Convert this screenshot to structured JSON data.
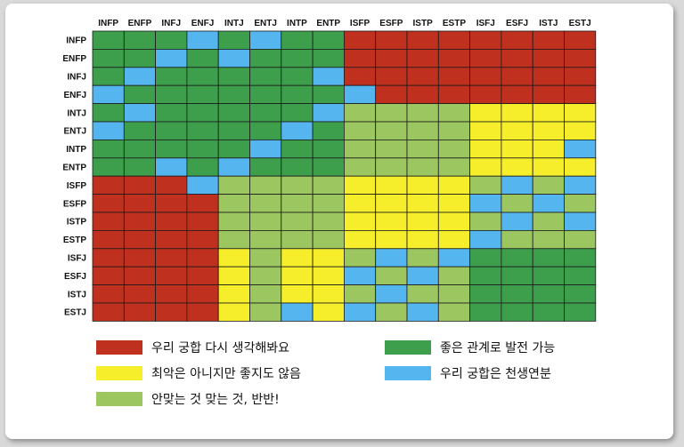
{
  "colors": {
    "red": "#c0301e",
    "dkgreen": "#3d9e4c",
    "ltgreen": "#9cc660",
    "yellow": "#f6ee2a",
    "blue": "#55b5ee"
  },
  "chart_data": {
    "type": "heatmap",
    "columns": [
      "INFP",
      "ENFP",
      "INFJ",
      "ENFJ",
      "INTJ",
      "ENTJ",
      "INTP",
      "ENTP",
      "ISFP",
      "ESFP",
      "ISTP",
      "ESTP",
      "ISFJ",
      "ESFJ",
      "ISTJ",
      "ESTJ"
    ],
    "rows": [
      "INFP",
      "ENFP",
      "INFJ",
      "ENFJ",
      "INTJ",
      "ENTJ",
      "INTP",
      "ENTP",
      "ISFP",
      "ESFP",
      "ISTP",
      "ESTP",
      "ISFJ",
      "ESFJ",
      "ISTJ",
      "ESTJ"
    ],
    "categories": [
      "red",
      "yellow",
      "ltgreen",
      "dkgreen",
      "blue"
    ],
    "matrix": [
      [
        "G",
        "G",
        "G",
        "B",
        "G",
        "B",
        "G",
        "G",
        "R",
        "R",
        "R",
        "R",
        "R",
        "R",
        "R",
        "R"
      ],
      [
        "G",
        "G",
        "B",
        "G",
        "B",
        "G",
        "G",
        "G",
        "R",
        "R",
        "R",
        "R",
        "R",
        "R",
        "R",
        "R"
      ],
      [
        "G",
        "B",
        "G",
        "G",
        "G",
        "G",
        "G",
        "B",
        "R",
        "R",
        "R",
        "R",
        "R",
        "R",
        "R",
        "R"
      ],
      [
        "B",
        "G",
        "G",
        "G",
        "G",
        "G",
        "G",
        "G",
        "B",
        "R",
        "R",
        "R",
        "R",
        "R",
        "R",
        "R"
      ],
      [
        "G",
        "B",
        "G",
        "G",
        "G",
        "G",
        "G",
        "B",
        "L",
        "L",
        "L",
        "L",
        "Y",
        "Y",
        "Y",
        "Y"
      ],
      [
        "B",
        "G",
        "G",
        "G",
        "G",
        "G",
        "B",
        "G",
        "L",
        "L",
        "L",
        "L",
        "Y",
        "Y",
        "Y",
        "Y"
      ],
      [
        "G",
        "G",
        "G",
        "G",
        "G",
        "B",
        "G",
        "G",
        "L",
        "L",
        "L",
        "L",
        "Y",
        "Y",
        "Y",
        "B"
      ],
      [
        "G",
        "G",
        "B",
        "G",
        "B",
        "G",
        "G",
        "G",
        "L",
        "L",
        "L",
        "L",
        "Y",
        "Y",
        "Y",
        "Y"
      ],
      [
        "R",
        "R",
        "R",
        "B",
        "L",
        "L",
        "L",
        "L",
        "Y",
        "Y",
        "Y",
        "Y",
        "L",
        "B",
        "L",
        "B"
      ],
      [
        "R",
        "R",
        "R",
        "R",
        "L",
        "L",
        "L",
        "L",
        "Y",
        "Y",
        "Y",
        "Y",
        "B",
        "L",
        "B",
        "L"
      ],
      [
        "R",
        "R",
        "R",
        "R",
        "L",
        "L",
        "L",
        "L",
        "Y",
        "Y",
        "Y",
        "Y",
        "L",
        "B",
        "L",
        "B"
      ],
      [
        "R",
        "R",
        "R",
        "R",
        "L",
        "L",
        "L",
        "L",
        "Y",
        "Y",
        "Y",
        "Y",
        "B",
        "L",
        "L",
        "L"
      ],
      [
        "R",
        "R",
        "R",
        "R",
        "Y",
        "L",
        "Y",
        "Y",
        "L",
        "B",
        "L",
        "B",
        "G",
        "G",
        "G",
        "G"
      ],
      [
        "R",
        "R",
        "R",
        "R",
        "Y",
        "L",
        "Y",
        "Y",
        "B",
        "L",
        "B",
        "L",
        "G",
        "G",
        "G",
        "G"
      ],
      [
        "R",
        "R",
        "R",
        "R",
        "Y",
        "L",
        "Y",
        "Y",
        "L",
        "B",
        "L",
        "L",
        "G",
        "G",
        "G",
        "G"
      ],
      [
        "R",
        "R",
        "R",
        "R",
        "Y",
        "L",
        "B",
        "Y",
        "B",
        "L",
        "B",
        "L",
        "G",
        "G",
        "G",
        "G"
      ]
    ],
    "legend": [
      {
        "key": "R",
        "label": "우리 궁합 다시 생각해봐요"
      },
      {
        "key": "Y",
        "label": "최악은 아니지만 좋지도 않음"
      },
      {
        "key": "L",
        "label": "안맞는 것 맞는 것, 반반!"
      },
      {
        "key": "G",
        "label": "좋은 관계로 발전 가능"
      },
      {
        "key": "B",
        "label": "우리 궁합은 천생연분"
      }
    ]
  }
}
